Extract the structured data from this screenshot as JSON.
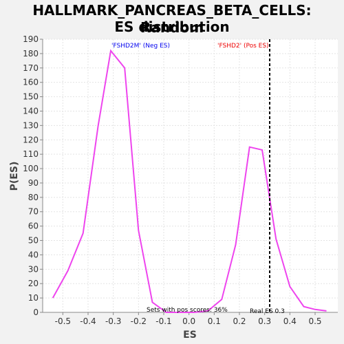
{
  "chart_data": {
    "type": "line",
    "title_line1": "HALLMARK_PANCREAS_BETA_CELLS: Random",
    "title_line2": "ES distribution",
    "xlabel": "ES",
    "ylabel": "P(ES)",
    "xlim": [
      -0.58,
      0.59
    ],
    "ylim": [
      0,
      190
    ],
    "x_ticks": [
      "-0.5",
      "-0.4",
      "-0.3",
      "-0.2",
      "-0.1",
      "0.0",
      "0.1",
      "0.2",
      "0.3",
      "0.4",
      "0.5"
    ],
    "x_tick_values": [
      -0.5,
      -0.4,
      -0.3,
      -0.2,
      -0.1,
      0.0,
      0.1,
      0.2,
      0.3,
      0.4,
      0.5
    ],
    "y_ticks": [
      "0",
      "10",
      "20",
      "30",
      "40",
      "50",
      "60",
      "70",
      "80",
      "90",
      "100",
      "110",
      "120",
      "130",
      "140",
      "150",
      "160",
      "170",
      "180",
      "190"
    ],
    "y_tick_values": [
      0,
      10,
      20,
      30,
      40,
      50,
      60,
      70,
      80,
      90,
      100,
      110,
      120,
      130,
      140,
      150,
      160,
      170,
      180,
      190
    ],
    "grid": true,
    "series": [
      {
        "color": "#ee44ee",
        "x": [
          -0.54,
          -0.48,
          -0.42,
          -0.36,
          -0.31,
          -0.255,
          -0.2,
          -0.145,
          -0.09,
          -0.035,
          0.02,
          0.075,
          0.13,
          0.185,
          0.24,
          0.29,
          0.345,
          0.4,
          0.455,
          0.5,
          0.545
        ],
        "y": [
          10,
          29,
          55,
          130,
          182,
          170,
          57,
          7,
          0,
          0,
          0,
          1,
          9,
          47,
          115,
          113,
          51,
          18,
          4,
          2,
          1
        ]
      }
    ],
    "annotations": {
      "neg_label": "'FSHD2M' (Neg ES)",
      "neg_color": "#0000ee",
      "pos_label": "'FSHD2' (Pos ES)",
      "pos_color": "#ee0000",
      "pos_scores_text": "Sets with pos scores: 36%",
      "real_es_text": "Real ES 0.3",
      "real_es_value": 0.32
    }
  }
}
